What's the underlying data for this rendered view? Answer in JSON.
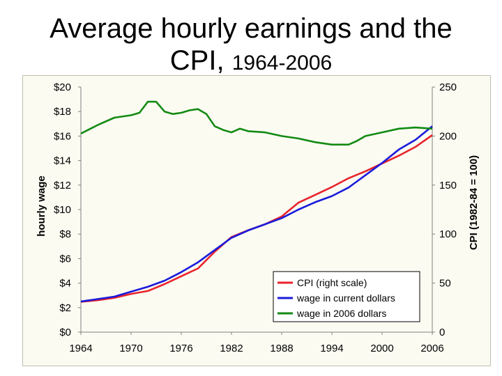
{
  "title": {
    "line1": "Average hourly earnings and the",
    "line2_main": "CPI,",
    "line2_years": "1964-2006"
  },
  "chart_data": {
    "type": "line",
    "title": "Average hourly earnings and the CPI, 1964-2006",
    "xlabel": "",
    "ylabel": "hourly wage",
    "y2label": "CPI  (1982-84 = 100)",
    "xlim": [
      1964,
      2006
    ],
    "ylim": [
      0,
      20
    ],
    "y2lim": [
      0,
      250
    ],
    "x_ticks": [
      "1964",
      "1970",
      "1976",
      "1982",
      "1988",
      "1994",
      "2000",
      "2006"
    ],
    "y_ticks": [
      "$0",
      "$2",
      "$4",
      "$6",
      "$8",
      "$10",
      "$12",
      "$14",
      "$16",
      "$18",
      "$20"
    ],
    "y2_ticks": [
      "0",
      "50",
      "100",
      "150",
      "200",
      "250"
    ],
    "grid": false,
    "legend_position": "bottom-right",
    "series": [
      {
        "name": "CPI  (right scale)",
        "color": "#e8232b",
        "axis": "right",
        "x": [
          1964,
          1966,
          1968,
          1970,
          1972,
          1974,
          1976,
          1978,
          1980,
          1982,
          1984,
          1986,
          1988,
          1990,
          1992,
          1994,
          1996,
          1998,
          2000,
          2002,
          2004,
          2006
        ],
        "y": [
          31,
          32.5,
          35,
          39,
          42,
          49,
          57,
          65,
          82,
          97,
          104,
          110,
          118,
          132,
          140,
          148,
          157,
          164,
          172,
          180,
          189,
          201
        ]
      },
      {
        "name": "wage in current dollars",
        "color": "#1a1adb",
        "axis": "left",
        "x": [
          1964,
          1966,
          1968,
          1970,
          1972,
          1974,
          1976,
          1978,
          1980,
          1982,
          1984,
          1986,
          1988,
          1990,
          1992,
          1994,
          1996,
          1998,
          2000,
          2002,
          2004,
          2006
        ],
        "y": [
          2.5,
          2.7,
          2.9,
          3.3,
          3.7,
          4.2,
          4.9,
          5.7,
          6.7,
          7.7,
          8.3,
          8.8,
          9.3,
          10.0,
          10.6,
          11.1,
          11.8,
          12.8,
          13.8,
          14.9,
          15.7,
          16.8
        ]
      },
      {
        "name": "wage in 2006 dollars",
        "color": "#138a13",
        "axis": "left",
        "x": [
          1964,
          1966,
          1968,
          1970,
          1971,
          1972,
          1973,
          1974,
          1975,
          1976,
          1977,
          1978,
          1979,
          1980,
          1981,
          1982,
          1983,
          1984,
          1986,
          1988,
          1990,
          1992,
          1994,
          1996,
          1997,
          1998,
          2000,
          2002,
          2004,
          2006
        ],
        "y": [
          16.2,
          16.9,
          17.5,
          17.7,
          17.9,
          18.8,
          18.8,
          18.0,
          17.8,
          17.9,
          18.1,
          18.2,
          17.8,
          16.8,
          16.5,
          16.3,
          16.6,
          16.4,
          16.3,
          16.0,
          15.8,
          15.5,
          15.3,
          15.3,
          15.6,
          16.0,
          16.3,
          16.6,
          16.7,
          16.6
        ]
      }
    ]
  }
}
